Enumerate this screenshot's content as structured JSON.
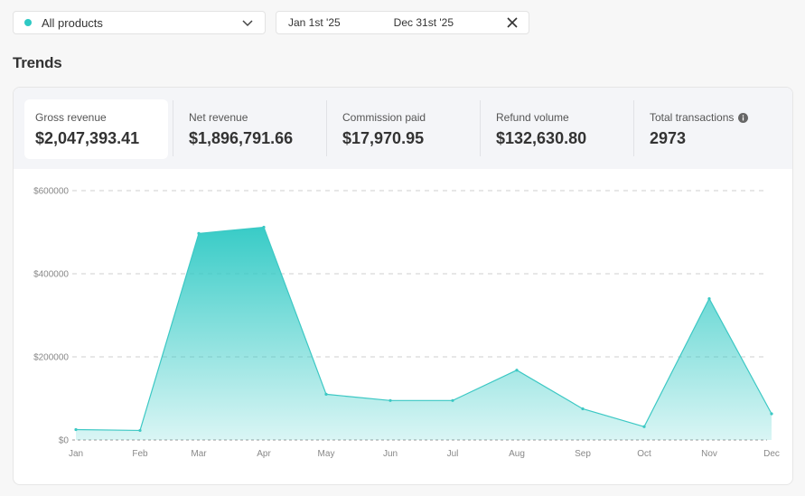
{
  "filters": {
    "product": {
      "label": "All products",
      "dot_color": "#2ec9c4",
      "icon": "chevron-down-icon"
    },
    "date_range": {
      "start": "Jan 1st '25",
      "end": "Dec 31st '25",
      "clear_icon": "close-icon"
    }
  },
  "section_title": "Trends",
  "kpis": [
    {
      "label": "Gross revenue",
      "value": "$2,047,393.41",
      "active": true
    },
    {
      "label": "Net revenue",
      "value": "$1,896,791.66"
    },
    {
      "label": "Commission paid",
      "value": "$17,970.95"
    },
    {
      "label": "Refund volume",
      "value": "$132,630.80"
    },
    {
      "label": "Total transactions",
      "value": "2973",
      "icon": "info-icon"
    }
  ],
  "colors": {
    "accent": "#2ec9c4",
    "accent_line": "#3cc8c4"
  },
  "chart_data": {
    "type": "area",
    "categories": [
      "Jan",
      "Feb",
      "Mar",
      "Apr",
      "May",
      "Jun",
      "Jul",
      "Aug",
      "Sep",
      "Oct",
      "Nov",
      "Dec"
    ],
    "values": [
      25000,
      23000,
      497000,
      512000,
      110000,
      95000,
      95000,
      168000,
      75000,
      32000,
      340000,
      63000
    ],
    "yticks": [
      0,
      200000,
      400000,
      600000
    ],
    "ytick_labels": [
      "$0",
      "$200000",
      "$400000",
      "$600000"
    ],
    "ylim": [
      0,
      600000
    ],
    "grid": true
  }
}
